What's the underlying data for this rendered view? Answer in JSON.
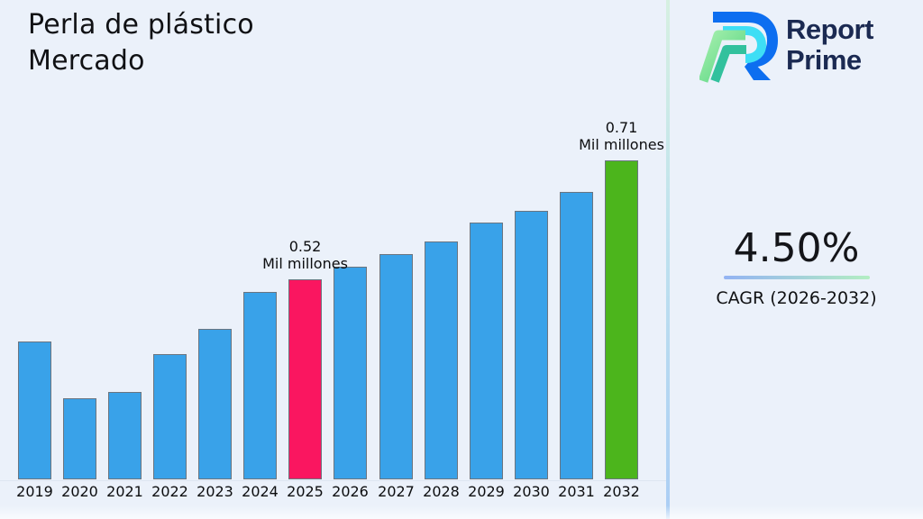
{
  "title": {
    "line1": "Perla de plástico",
    "line2": "Mercado"
  },
  "brand": {
    "name_line1": "Report",
    "name_line2": "Prime"
  },
  "kpi": {
    "value": "4.50%",
    "label": "CAGR (2026-2032)"
  },
  "colors": {
    "background": "#ebf1fa",
    "bar_default": "#39a2e9",
    "bar_highlight_2025": "#fa1660",
    "bar_highlight_2032": "#4cb51c",
    "bar_edge": "#6b7580",
    "brand_navy": "#1b2a52",
    "divider_top": "#d6f0e1",
    "divider_bottom": "#abcdf4",
    "underline_left": "#93b3f3",
    "underline_right": "#b3eec2"
  },
  "chart_data": {
    "type": "bar",
    "title": "Perla de plástico Mercado",
    "unit": "Mil millones",
    "xlabel": "",
    "ylabel": "",
    "grid": false,
    "legend": "none",
    "categories": [
      "2019",
      "2020",
      "2021",
      "2022",
      "2023",
      "2024",
      "2025",
      "2026",
      "2027",
      "2028",
      "2029",
      "2030",
      "2031",
      "2032"
    ],
    "values": [
      0.42,
      0.33,
      0.34,
      0.4,
      0.44,
      0.5,
      0.52,
      0.54,
      0.56,
      0.58,
      0.61,
      0.63,
      0.66,
      0.71
    ],
    "values_note": "2025 and 2032 labeled on chart; other values estimated from bar heights",
    "highlights": {
      "2025": "bar_highlight_2025",
      "2032": "bar_highlight_2032"
    },
    "annotations": [
      {
        "category": "2025",
        "line1": "0.52",
        "line2": "Mil millones"
      },
      {
        "category": "2032",
        "line1": "0.71",
        "line2": "Mil millones"
      }
    ],
    "axis": {
      "ymin_render": 0.2,
      "ymax_render": 0.71
    }
  }
}
